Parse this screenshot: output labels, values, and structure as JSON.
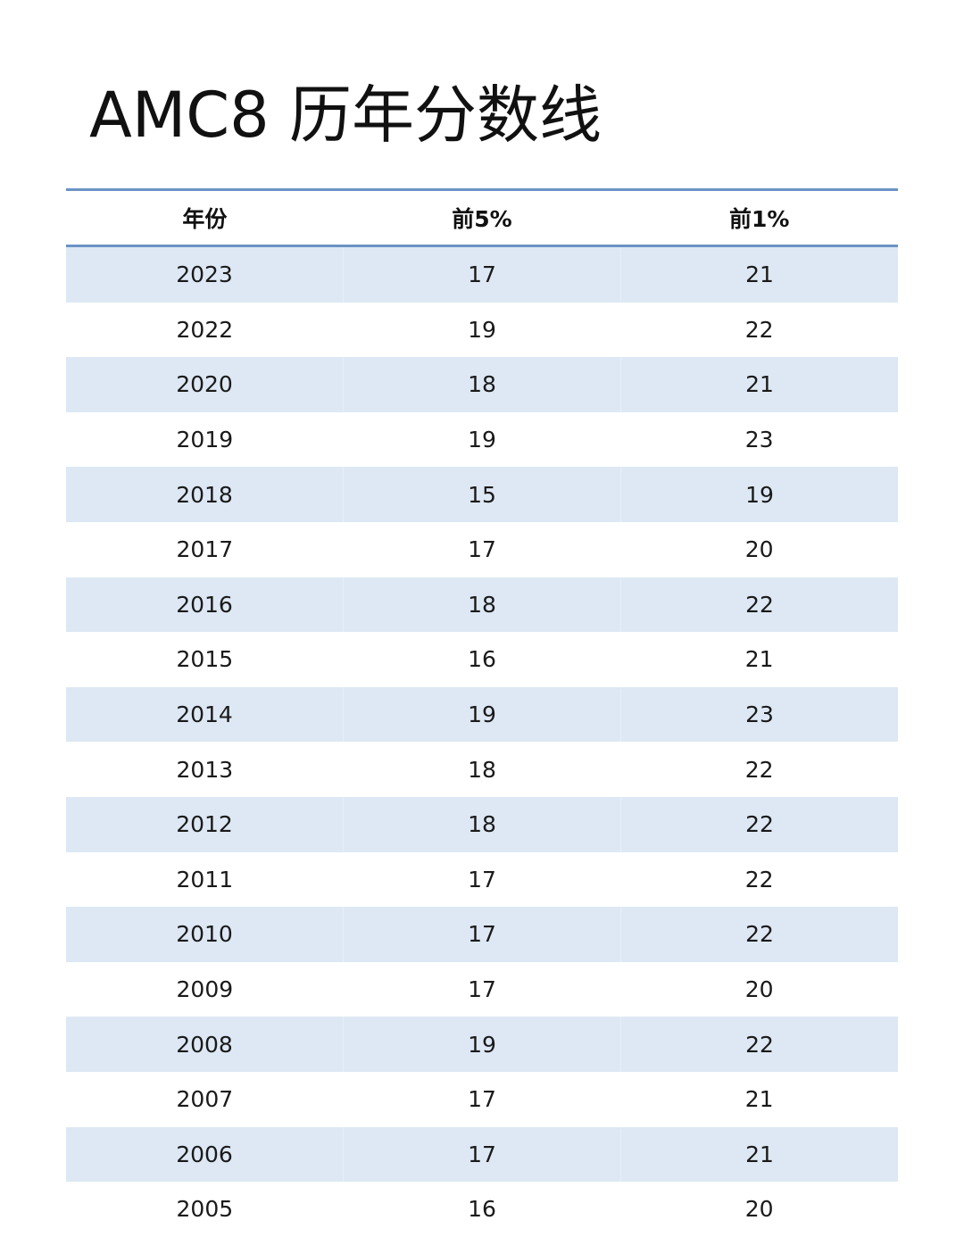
{
  "title": "AMC8 历年分数线",
  "table": {
    "headers": [
      "年份",
      "前5%",
      "前1%"
    ],
    "rows": [
      [
        "2023",
        "17",
        "21"
      ],
      [
        "2022",
        "19",
        "22"
      ],
      [
        "2020",
        "18",
        "21"
      ],
      [
        "2019",
        "19",
        "23"
      ],
      [
        "2018",
        "15",
        "19"
      ],
      [
        "2017",
        "17",
        "20"
      ],
      [
        "2016",
        "18",
        "22"
      ],
      [
        "2015",
        "16",
        "21"
      ],
      [
        "2014",
        "19",
        "23"
      ],
      [
        "2013",
        "18",
        "22"
      ],
      [
        "2012",
        "18",
        "22"
      ],
      [
        "2011",
        "17",
        "22"
      ],
      [
        "2010",
        "17",
        "22"
      ],
      [
        "2009",
        "17",
        "20"
      ],
      [
        "2008",
        "19",
        "22"
      ],
      [
        "2007",
        "17",
        "21"
      ],
      [
        "2006",
        "17",
        "21"
      ],
      [
        "2005",
        "16",
        "20"
      ]
    ]
  },
  "colors": {
    "header_rule": "#6b93c4",
    "row_shade": "#dde8f4"
  }
}
